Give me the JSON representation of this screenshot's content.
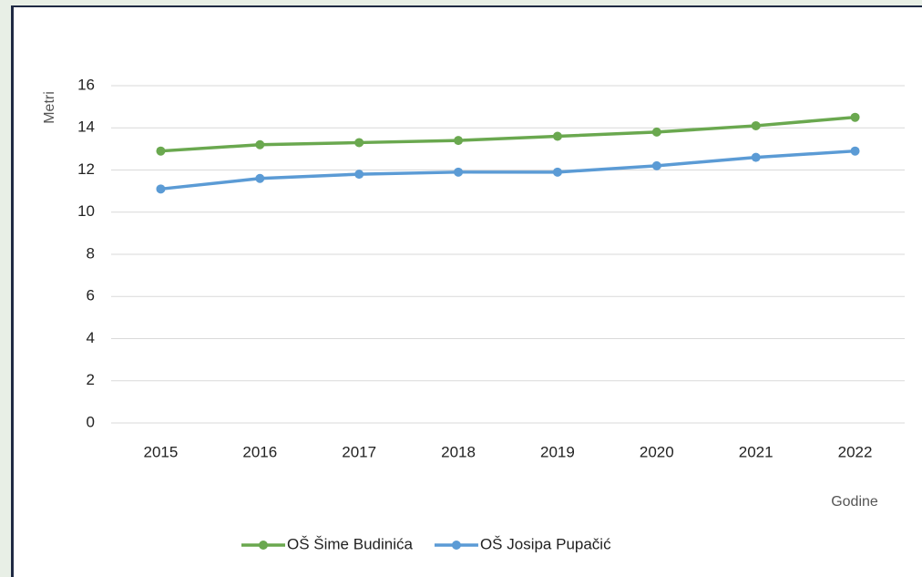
{
  "chart_data": {
    "type": "line",
    "x_label": "Godine",
    "y_label": "Metri",
    "categories": [
      "2015",
      "2016",
      "2017",
      "2018",
      "2019",
      "2020",
      "2021",
      "2022"
    ],
    "series": [
      {
        "name": "OŠ Šime Budinića",
        "color": "#6aa84f",
        "values": [
          12.9,
          13.2,
          13.3,
          13.4,
          13.6,
          13.8,
          14.1,
          14.5
        ]
      },
      {
        "name": "OŠ Josipa Pupačić",
        "color": "#5b9bd5",
        "values": [
          11.1,
          11.6,
          11.8,
          11.9,
          11.9,
          12.2,
          12.6,
          12.9
        ]
      }
    ],
    "ylim": [
      0,
      16
    ],
    "yticks": [
      0,
      2,
      4,
      6,
      8,
      10,
      12,
      14,
      16
    ],
    "grid": true,
    "legend": "bottom"
  }
}
